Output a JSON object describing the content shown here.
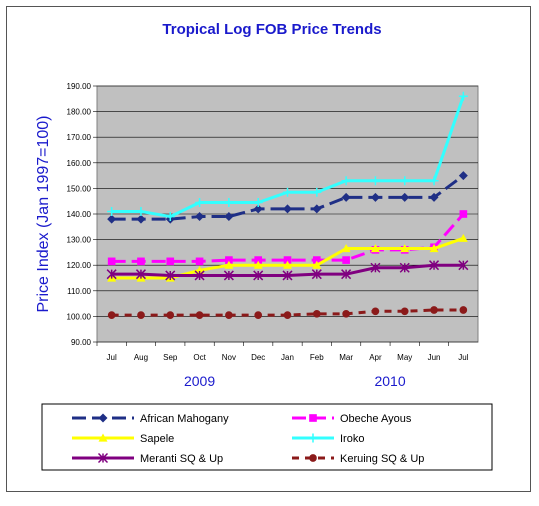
{
  "chart_data": {
    "type": "line",
    "title": "Tropical Log FOB Price Trends",
    "ylabel": "Price Index (Jan 1997=100)",
    "xlabel": "",
    "categories": [
      "Jul",
      "Aug",
      "Sep",
      "Oct",
      "Nov",
      "Dec",
      "Jan",
      "Feb",
      "Mar",
      "Apr",
      "May",
      "Jun",
      "Jul"
    ],
    "year_labels": [
      {
        "label": "2009",
        "center_category": 3
      },
      {
        "label": "2010",
        "center_category": 9.5
      }
    ],
    "ylim": [
      90,
      190
    ],
    "yticks": [
      "90.00",
      "100.00",
      "110.00",
      "120.00",
      "130.00",
      "140.00",
      "150.00",
      "160.00",
      "170.00",
      "180.00",
      "190.00"
    ],
    "grid": true,
    "plot_background": "#c0c0c0",
    "legend_position": "bottom",
    "series": [
      {
        "name": "African Mahogany",
        "color": "#1f2f86",
        "dash": "long",
        "marker": "diamond",
        "values": [
          138,
          138,
          138,
          139,
          139,
          142,
          142,
          142,
          146.5,
          146.5,
          146.5,
          146.5,
          155
        ]
      },
      {
        "name": "Obeche Ayous",
        "color": "#ff00ff",
        "dash": "long",
        "marker": "square",
        "values": [
          121.5,
          121.5,
          121.5,
          121.5,
          122,
          122,
          122,
          122,
          122,
          126,
          126,
          127,
          140
        ]
      },
      {
        "name": "Sapele",
        "color": "#ffff00",
        "dash": "solid",
        "marker": "triangle",
        "values": [
          115,
          115,
          115,
          118,
          120,
          120,
          120,
          120,
          126.5,
          126.5,
          126.5,
          126.5,
          130.5
        ]
      },
      {
        "name": "Iroko",
        "color": "#33ffff",
        "dash": "solid",
        "marker": "cross",
        "values": [
          141,
          141,
          139,
          144.5,
          144.5,
          144.5,
          148.5,
          148.5,
          153,
          153,
          153,
          153,
          186
        ]
      },
      {
        "name": "Meranti SQ & Up",
        "color": "#800080",
        "dash": "solid",
        "marker": "asterisk",
        "values": [
          116.5,
          116.5,
          116,
          116,
          116,
          116,
          116,
          116.5,
          116.5,
          119,
          119,
          120,
          120
        ]
      },
      {
        "name": "Keruing SQ & Up",
        "color": "#8b1a1a",
        "dash": "dashed",
        "marker": "circle",
        "values": [
          100.5,
          100.5,
          100.5,
          100.5,
          100.5,
          100.5,
          100.5,
          101,
          101,
          102,
          102,
          102.5,
          102.5
        ]
      }
    ]
  }
}
